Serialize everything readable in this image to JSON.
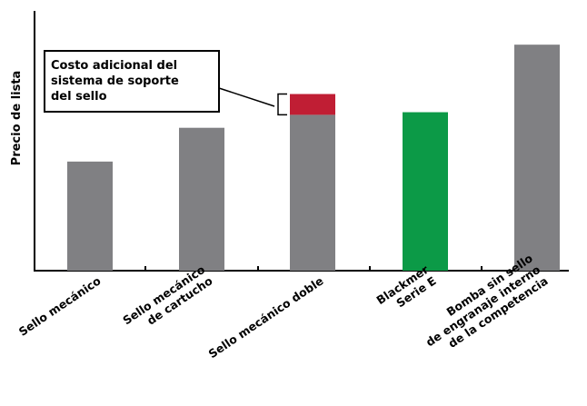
{
  "chart_data": {
    "type": "bar",
    "stacked": true,
    "title": "",
    "xlabel": "",
    "ylabel": "Precio de lista",
    "ylim": [
      0,
      100
    ],
    "grid": false,
    "legend": "none",
    "categories": [
      [
        "Sello mecánico"
      ],
      [
        "Sello mecánico",
        "de cartucho"
      ],
      [
        "Sello mecánico doble"
      ],
      [
        "Blackmer",
        "Serie E"
      ],
      [
        "Bomba sin sello",
        "de engranaje interno",
        "de la competencia"
      ]
    ],
    "series": [
      {
        "values": [
          42,
          55,
          60,
          61,
          87
        ],
        "colors": [
          "#808083",
          "#808083",
          "#808083",
          "#0c9a47",
          "#808083"
        ]
      },
      {
        "values": [
          0,
          0,
          8,
          0,
          0
        ],
        "colors": [
          "#c01e34",
          "#c01e34",
          "#c01e34",
          "#c01e34",
          "#c01e34"
        ]
      }
    ],
    "annotation": {
      "lines": [
        "Costo adicional del",
        "sistema de soporte",
        "del sello"
      ],
      "target_category": 2
    }
  }
}
